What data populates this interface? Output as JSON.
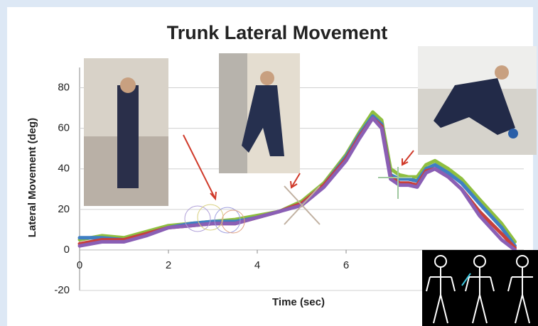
{
  "chart_data": {
    "type": "line",
    "title": "Trunk Lateral Movement",
    "x_label": "Time (sec)",
    "y_label": "Lateral Movement (deg)",
    "x": [
      0,
      0.5,
      1,
      1.5,
      2,
      2.5,
      3,
      3.5,
      4,
      4.5,
      5,
      5.5,
      6,
      6.3,
      6.6,
      6.8,
      7,
      7.2,
      7.4,
      7.6,
      7.8,
      8,
      8.3,
      8.6,
      9,
      9.5,
      9.8
    ],
    "series": [
      {
        "color": "#8fbf3f",
        "values": [
          5,
          7,
          6,
          9,
          12,
          13,
          14,
          15,
          17,
          19,
          24,
          33,
          47,
          58,
          68,
          64,
          40,
          37,
          36,
          36,
          42,
          44,
          40,
          35,
          25,
          13,
          4
        ]
      },
      {
        "color": "#3f7fc4",
        "values": [
          6,
          6,
          5,
          8,
          11,
          13,
          14,
          14,
          16,
          19,
          23,
          32,
          46,
          57,
          66,
          62,
          37,
          35,
          35,
          34,
          40,
          42,
          38,
          33,
          23,
          11,
          2
        ]
      },
      {
        "color": "#c8413b",
        "values": [
          3,
          5,
          5,
          8,
          11,
          12,
          13,
          13,
          16,
          19,
          23,
          32,
          45,
          56,
          65,
          61,
          36,
          33,
          33,
          32,
          39,
          40,
          36,
          30,
          19,
          8,
          1
        ]
      },
      {
        "color": "#8a5fb5",
        "values": [
          2,
          4,
          4,
          7,
          11,
          12,
          13,
          13,
          16,
          19,
          22,
          31,
          44,
          55,
          65,
          60,
          35,
          32,
          32,
          31,
          38,
          40,
          36,
          30,
          17,
          5,
          0
        ]
      }
    ],
    "xlim": [
      0,
      10
    ],
    "xticks": [
      0,
      2,
      4,
      6
    ],
    "ylim": [
      -20,
      90
    ],
    "yticks": [
      -20,
      0,
      20,
      40,
      60,
      80
    ],
    "grid": true
  }
}
